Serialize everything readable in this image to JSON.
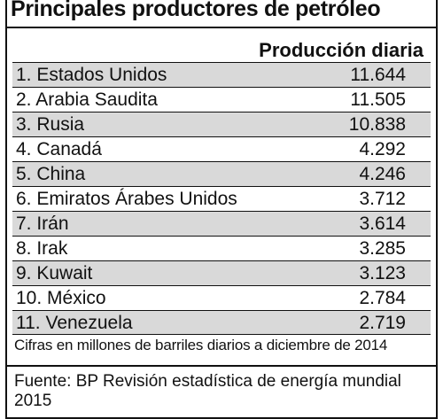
{
  "chart_data": {
    "type": "table",
    "title": "Principales productores de petróleo",
    "column_header": "Producción diaria",
    "rows": [
      {
        "label": "1. Estados Unidos",
        "value": "11.644"
      },
      {
        "label": "2. Arabia Saudita",
        "value": "11.505"
      },
      {
        "label": "3. Rusia",
        "value": "10.838"
      },
      {
        "label": "4. Canadá",
        "value": "4.292"
      },
      {
        "label": "5. China",
        "value": "4.246"
      },
      {
        "label": "6. Emiratos Árabes Unidos",
        "value": "3.712"
      },
      {
        "label": "7. Irán",
        "value": "3.614"
      },
      {
        "label": "8. Irak",
        "value": "3.285"
      },
      {
        "label": "9. Kuwait",
        "value": "3.123"
      },
      {
        "label": "10. México",
        "value": "2.784"
      },
      {
        "label": "11. Venezuela",
        "value": "2.719"
      }
    ],
    "note": "Cifras en millones de barriles diarios a diciembre de 2014",
    "source": "Fuente: BP Revisión estadística de energía mundial 2015"
  },
  "colors": {
    "shaded_row": "#d9d9d9",
    "background": "#ffffff",
    "text": "#111111"
  }
}
